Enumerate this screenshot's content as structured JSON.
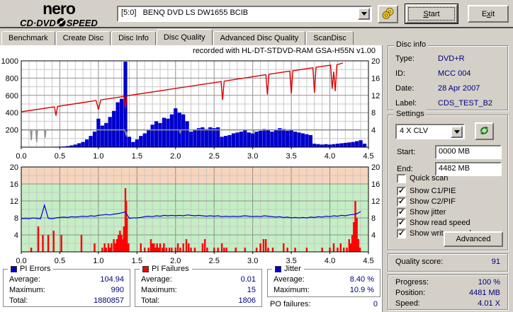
{
  "window": {
    "logo": {
      "line1": "nero",
      "line2a": "CD·DVD",
      "line2b": "SPEED"
    },
    "drive_select": "[5:0]   BENQ DVD LS DW1655 BCIB",
    "buttons": {
      "start_u": "S",
      "start_rest": "tart",
      "exit_pre": "E",
      "exit_u": "x",
      "exit_rest": "it"
    }
  },
  "tabs": [
    {
      "label": "Benchmark",
      "active": false
    },
    {
      "label": "Create Disc",
      "active": false
    },
    {
      "label": "Disc Info",
      "active": false
    },
    {
      "label": "Disc Quality",
      "active": true
    },
    {
      "label": "Advanced Disc Quality",
      "active": false
    },
    {
      "label": "ScanDisc",
      "active": false
    }
  ],
  "disc_info": {
    "title": "Disc info",
    "rows": [
      {
        "label": "Type:",
        "value": "DVD+R"
      },
      {
        "label": "ID:",
        "value": "MCC 004"
      },
      {
        "label": "Date:",
        "value": "28 Apr 2007"
      },
      {
        "label": "Label:",
        "value": "CDS_TEST_B2"
      }
    ]
  },
  "settings": {
    "title": "Settings",
    "speed_selected": "4 X CLV",
    "start_label": "Start:",
    "start_value": "0000 MB",
    "end_label": "End:",
    "end_value": "4482 MB",
    "checkboxes": [
      {
        "label": "Quick scan",
        "checked": false
      },
      {
        "label": "Show C1/PIE",
        "checked": true
      },
      {
        "label": "Show C2/PIF",
        "checked": true
      },
      {
        "label": "Show jitter",
        "checked": true
      },
      {
        "label": "Show read speed",
        "checked": true
      },
      {
        "label": "Show write speed",
        "checked": true
      }
    ],
    "advanced_label": "Advanced"
  },
  "quality": {
    "label": "Quality score:",
    "value": "91"
  },
  "progress_panel": {
    "rows": [
      {
        "label": "Progress:",
        "value": "100 %"
      },
      {
        "label": "Position:",
        "value": "4481 MB"
      },
      {
        "label": "Speed:",
        "value": "4.01 X"
      }
    ]
  },
  "stats": {
    "pi_errors": {
      "title": "PI Errors",
      "legend_color": "#0000cd",
      "rows": [
        {
          "label": "Average:",
          "value": "104.94"
        },
        {
          "label": "Maximum:",
          "value": "990"
        },
        {
          "label": "Total:",
          "value": "1880857"
        }
      ]
    },
    "pi_failures": {
      "title": "PI Failures",
      "legend_color": "#ff0000",
      "rows": [
        {
          "label": "Average:",
          "value": "0.01"
        },
        {
          "label": "Maximum:",
          "value": "15"
        },
        {
          "label": "Total:",
          "value": "1806"
        }
      ]
    },
    "jitter": {
      "title": "Jitter",
      "legend_color": "#0000cd",
      "rows": [
        {
          "label": "Average:",
          "value": "8.40 %"
        },
        {
          "label": "Maximum:",
          "value": "10.9 %"
        }
      ]
    },
    "po_failures": {
      "label": "PO failures:",
      "value": "0"
    }
  },
  "chart_data": [
    {
      "type": "bar",
      "title": "recorded with HL-DT-STDVD-RAM GSA-H55N v1.00",
      "x_range": [
        0,
        4.5
      ],
      "x_minor": 0.1,
      "x_major": 0.5,
      "x_ticks": [
        0,
        0.5,
        1.0,
        1.5,
        2.0,
        2.5,
        3.0,
        3.5,
        4.0,
        4.5
      ],
      "left_axis": {
        "range": [
          0,
          1000
        ],
        "ticks": [
          200,
          400,
          600,
          800,
          1000
        ],
        "minor": 100,
        "major": 200
      },
      "right_axis": {
        "range": [
          0,
          20
        ],
        "ticks": [
          4,
          8,
          12,
          16,
          20
        ]
      },
      "series": [
        {
          "name": "PI Errors",
          "type": "bar",
          "axis": "left",
          "color": "#0000cd",
          "x0": 0,
          "dx": 0.05,
          "values": [
            2,
            2,
            3,
            2,
            3,
            2,
            3,
            3,
            4,
            5,
            6,
            8,
            12,
            20,
            30,
            45,
            60,
            90,
            130,
            180,
            330,
            250,
            280,
            350,
            420,
            520,
            560,
            990,
            120,
            60,
            90,
            130,
            160,
            200,
            260,
            300,
            280,
            340,
            330,
            380,
            450,
            400,
            380,
            300,
            180,
            200,
            220,
            230,
            210,
            230,
            220,
            230,
            120,
            130,
            140,
            160,
            170,
            180,
            200,
            170,
            160,
            180,
            190,
            210,
            200,
            180,
            200,
            220,
            210,
            190,
            200,
            180,
            170,
            160,
            150,
            140,
            40,
            35,
            30,
            35,
            30,
            35,
            40,
            45,
            50,
            55,
            60,
            70,
            80,
            40
          ]
        },
        {
          "name": "read speed",
          "type": "line",
          "axis": "right",
          "color": "#909090",
          "width": 1.6,
          "points": [
            [
              0,
              4
            ],
            [
              0.12,
              4
            ],
            [
              0.13,
              1.6
            ],
            [
              0.14,
              4
            ],
            [
              0.19,
              4
            ],
            [
              0.2,
              1.2
            ],
            [
              0.21,
              4
            ],
            [
              0.3,
              4
            ],
            [
              0.31,
              2.2
            ],
            [
              0.32,
              4
            ],
            [
              1.34,
              4
            ],
            [
              1.36,
              2.8
            ],
            [
              1.38,
              4
            ],
            [
              2.05,
              4
            ],
            [
              2.06,
              3.4
            ],
            [
              2.07,
              4
            ],
            [
              3.0,
              4
            ],
            [
              3.01,
              3.5
            ],
            [
              3.02,
              4
            ],
            [
              4.4,
              4
            ]
          ]
        },
        {
          "name": "write speed",
          "type": "line",
          "axis": "right",
          "color": "#dd0000",
          "width": 1.4,
          "points": [
            [
              0,
              8.2
            ],
            [
              0.43,
              9.35
            ],
            [
              0.45,
              7.3
            ],
            [
              0.47,
              9.45
            ],
            [
              0.97,
              10.8
            ],
            [
              1.0,
              8.7
            ],
            [
              1.03,
              10.95
            ],
            [
              1.33,
              11.75
            ],
            [
              1.35,
              9.0
            ],
            [
              1.37,
              11.9
            ],
            [
              2.59,
              15.2
            ],
            [
              2.61,
              11.0
            ],
            [
              2.63,
              15.3
            ],
            [
              3.17,
              16.8
            ],
            [
              3.19,
              12.2
            ],
            [
              3.21,
              16.9
            ],
            [
              3.48,
              17.6
            ],
            [
              3.5,
              12.4
            ],
            [
              3.52,
              17.7
            ],
            [
              3.78,
              18.4
            ],
            [
              3.8,
              12.6
            ],
            [
              3.82,
              18.5
            ],
            [
              4.01,
              19.0
            ],
            [
              4.03,
              13.5
            ],
            [
              4.05,
              17.5
            ],
            [
              4.07,
              13.0
            ],
            [
              4.09,
              19.1
            ],
            [
              4.17,
              19.5
            ]
          ]
        }
      ]
    },
    {
      "type": "bar",
      "x_range": [
        0,
        4.5
      ],
      "x_minor": 0.1,
      "x_major": 0.5,
      "x_ticks": [
        0,
        0.5,
        1.0,
        1.5,
        2.0,
        2.5,
        3.0,
        3.5,
        4.0,
        4.5
      ],
      "left_axis": {
        "range": [
          0,
          20
        ],
        "ticks": [
          4,
          8,
          12,
          16,
          20
        ],
        "minor": 2,
        "major": 4
      },
      "right_axis": {
        "range": [
          0,
          20
        ],
        "ticks": [
          4,
          8,
          12,
          16,
          20
        ]
      },
      "bg_zones": [
        {
          "from": 0,
          "to": 16,
          "color": "#c4eec4"
        },
        {
          "from": 16,
          "to": 20,
          "color": "#f8d4bc"
        }
      ],
      "series": [
        {
          "name": "PI Failures",
          "type": "bar",
          "axis": "left",
          "color": "#ff0000",
          "points": [
            [
              0.13,
              1
            ],
            [
              0.22,
              6
            ],
            [
              0.28,
              4
            ],
            [
              0.35,
              4
            ],
            [
              0.42,
              5
            ],
            [
              0.52,
              4
            ],
            [
              0.78,
              4
            ],
            [
              0.95,
              2
            ],
            [
              1.05,
              1
            ],
            [
              1.08,
              2
            ],
            [
              1.1,
              1
            ],
            [
              1.13,
              2
            ],
            [
              1.15,
              1
            ],
            [
              1.17,
              2
            ],
            [
              1.2,
              3
            ],
            [
              1.22,
              2
            ],
            [
              1.24,
              3
            ],
            [
              1.26,
              4
            ],
            [
              1.28,
              5
            ],
            [
              1.3,
              4
            ],
            [
              1.31,
              3
            ],
            [
              1.33,
              6
            ],
            [
              1.35,
              15
            ],
            [
              1.36,
              12
            ],
            [
              1.37,
              8
            ],
            [
              1.39,
              2
            ],
            [
              1.55,
              2
            ],
            [
              1.6,
              1
            ],
            [
              1.65,
              1
            ],
            [
              1.68,
              3
            ],
            [
              1.7,
              2
            ],
            [
              1.72,
              2
            ],
            [
              1.74,
              1
            ],
            [
              1.76,
              2
            ],
            [
              1.78,
              1
            ],
            [
              1.8,
              2
            ],
            [
              1.83,
              1
            ],
            [
              1.85,
              2
            ],
            [
              1.88,
              1
            ],
            [
              1.92,
              1
            ],
            [
              1.95,
              1
            ],
            [
              2.0,
              1
            ],
            [
              2.03,
              2
            ],
            [
              2.06,
              1
            ],
            [
              2.1,
              2
            ],
            [
              2.14,
              3
            ],
            [
              2.17,
              2
            ],
            [
              2.2,
              1
            ],
            [
              2.25,
              1
            ],
            [
              2.35,
              2
            ],
            [
              2.38,
              3
            ],
            [
              2.41,
              1
            ],
            [
              2.5,
              1
            ],
            [
              2.55,
              1
            ],
            [
              2.6,
              2
            ],
            [
              2.63,
              1
            ],
            [
              2.66,
              1
            ],
            [
              2.78,
              1
            ],
            [
              2.9,
              1
            ],
            [
              3.05,
              1
            ],
            [
              3.1,
              2
            ],
            [
              3.14,
              3
            ],
            [
              3.17,
              3
            ],
            [
              3.2,
              1
            ],
            [
              3.26,
              1
            ],
            [
              3.4,
              2
            ],
            [
              3.45,
              1
            ],
            [
              3.55,
              1
            ],
            [
              3.7,
              1
            ],
            [
              3.9,
              1
            ],
            [
              4.0,
              1
            ],
            [
              4.05,
              2
            ],
            [
              4.1,
              1
            ],
            [
              4.14,
              2
            ],
            [
              4.18,
              1
            ],
            [
              4.22,
              1
            ],
            [
              4.25,
              3
            ],
            [
              4.27,
              2
            ],
            [
              4.29,
              4
            ],
            [
              4.31,
              7
            ],
            [
              4.33,
              12
            ],
            [
              4.35,
              8
            ],
            [
              4.37,
              3
            ],
            [
              4.39,
              1
            ]
          ]
        },
        {
          "name": "Jitter",
          "type": "line",
          "axis": "left",
          "color": "#0000cd",
          "width": 1.2,
          "x0": 0,
          "dx": 0.05,
          "values": [
            7.8,
            7.9,
            7.8,
            8.0,
            7.9,
            7.8,
            11.0,
            7.9,
            7.8,
            8.0,
            8.1,
            8.2,
            8.1,
            8.3,
            8.2,
            8.3,
            8.4,
            8.3,
            8.5,
            8.4,
            8.6,
            8.7,
            8.8,
            8.7,
            8.9,
            9.0,
            9.2,
            9.4,
            7.9,
            8.0,
            8.0,
            8.1,
            8.3,
            8.4,
            8.3,
            8.5,
            8.4,
            8.6,
            8.5,
            8.6,
            8.5,
            8.6,
            8.5,
            8.7,
            8.6,
            8.5,
            8.6,
            8.5,
            8.4,
            8.5,
            8.4,
            8.5,
            8.3,
            8.4,
            8.3,
            8.4,
            8.3,
            8.4,
            8.5,
            8.4,
            8.3,
            8.4,
            8.3,
            8.5,
            8.4,
            8.3,
            8.2,
            8.3,
            8.1,
            8.2,
            8.0,
            8.1,
            8.0,
            8.1,
            8.0,
            8.2,
            8.1,
            8.3,
            8.2,
            8.4,
            8.3,
            8.5,
            8.4,
            8.6,
            8.5,
            8.7,
            8.8,
            9.0,
            9.5
          ]
        }
      ]
    }
  ]
}
